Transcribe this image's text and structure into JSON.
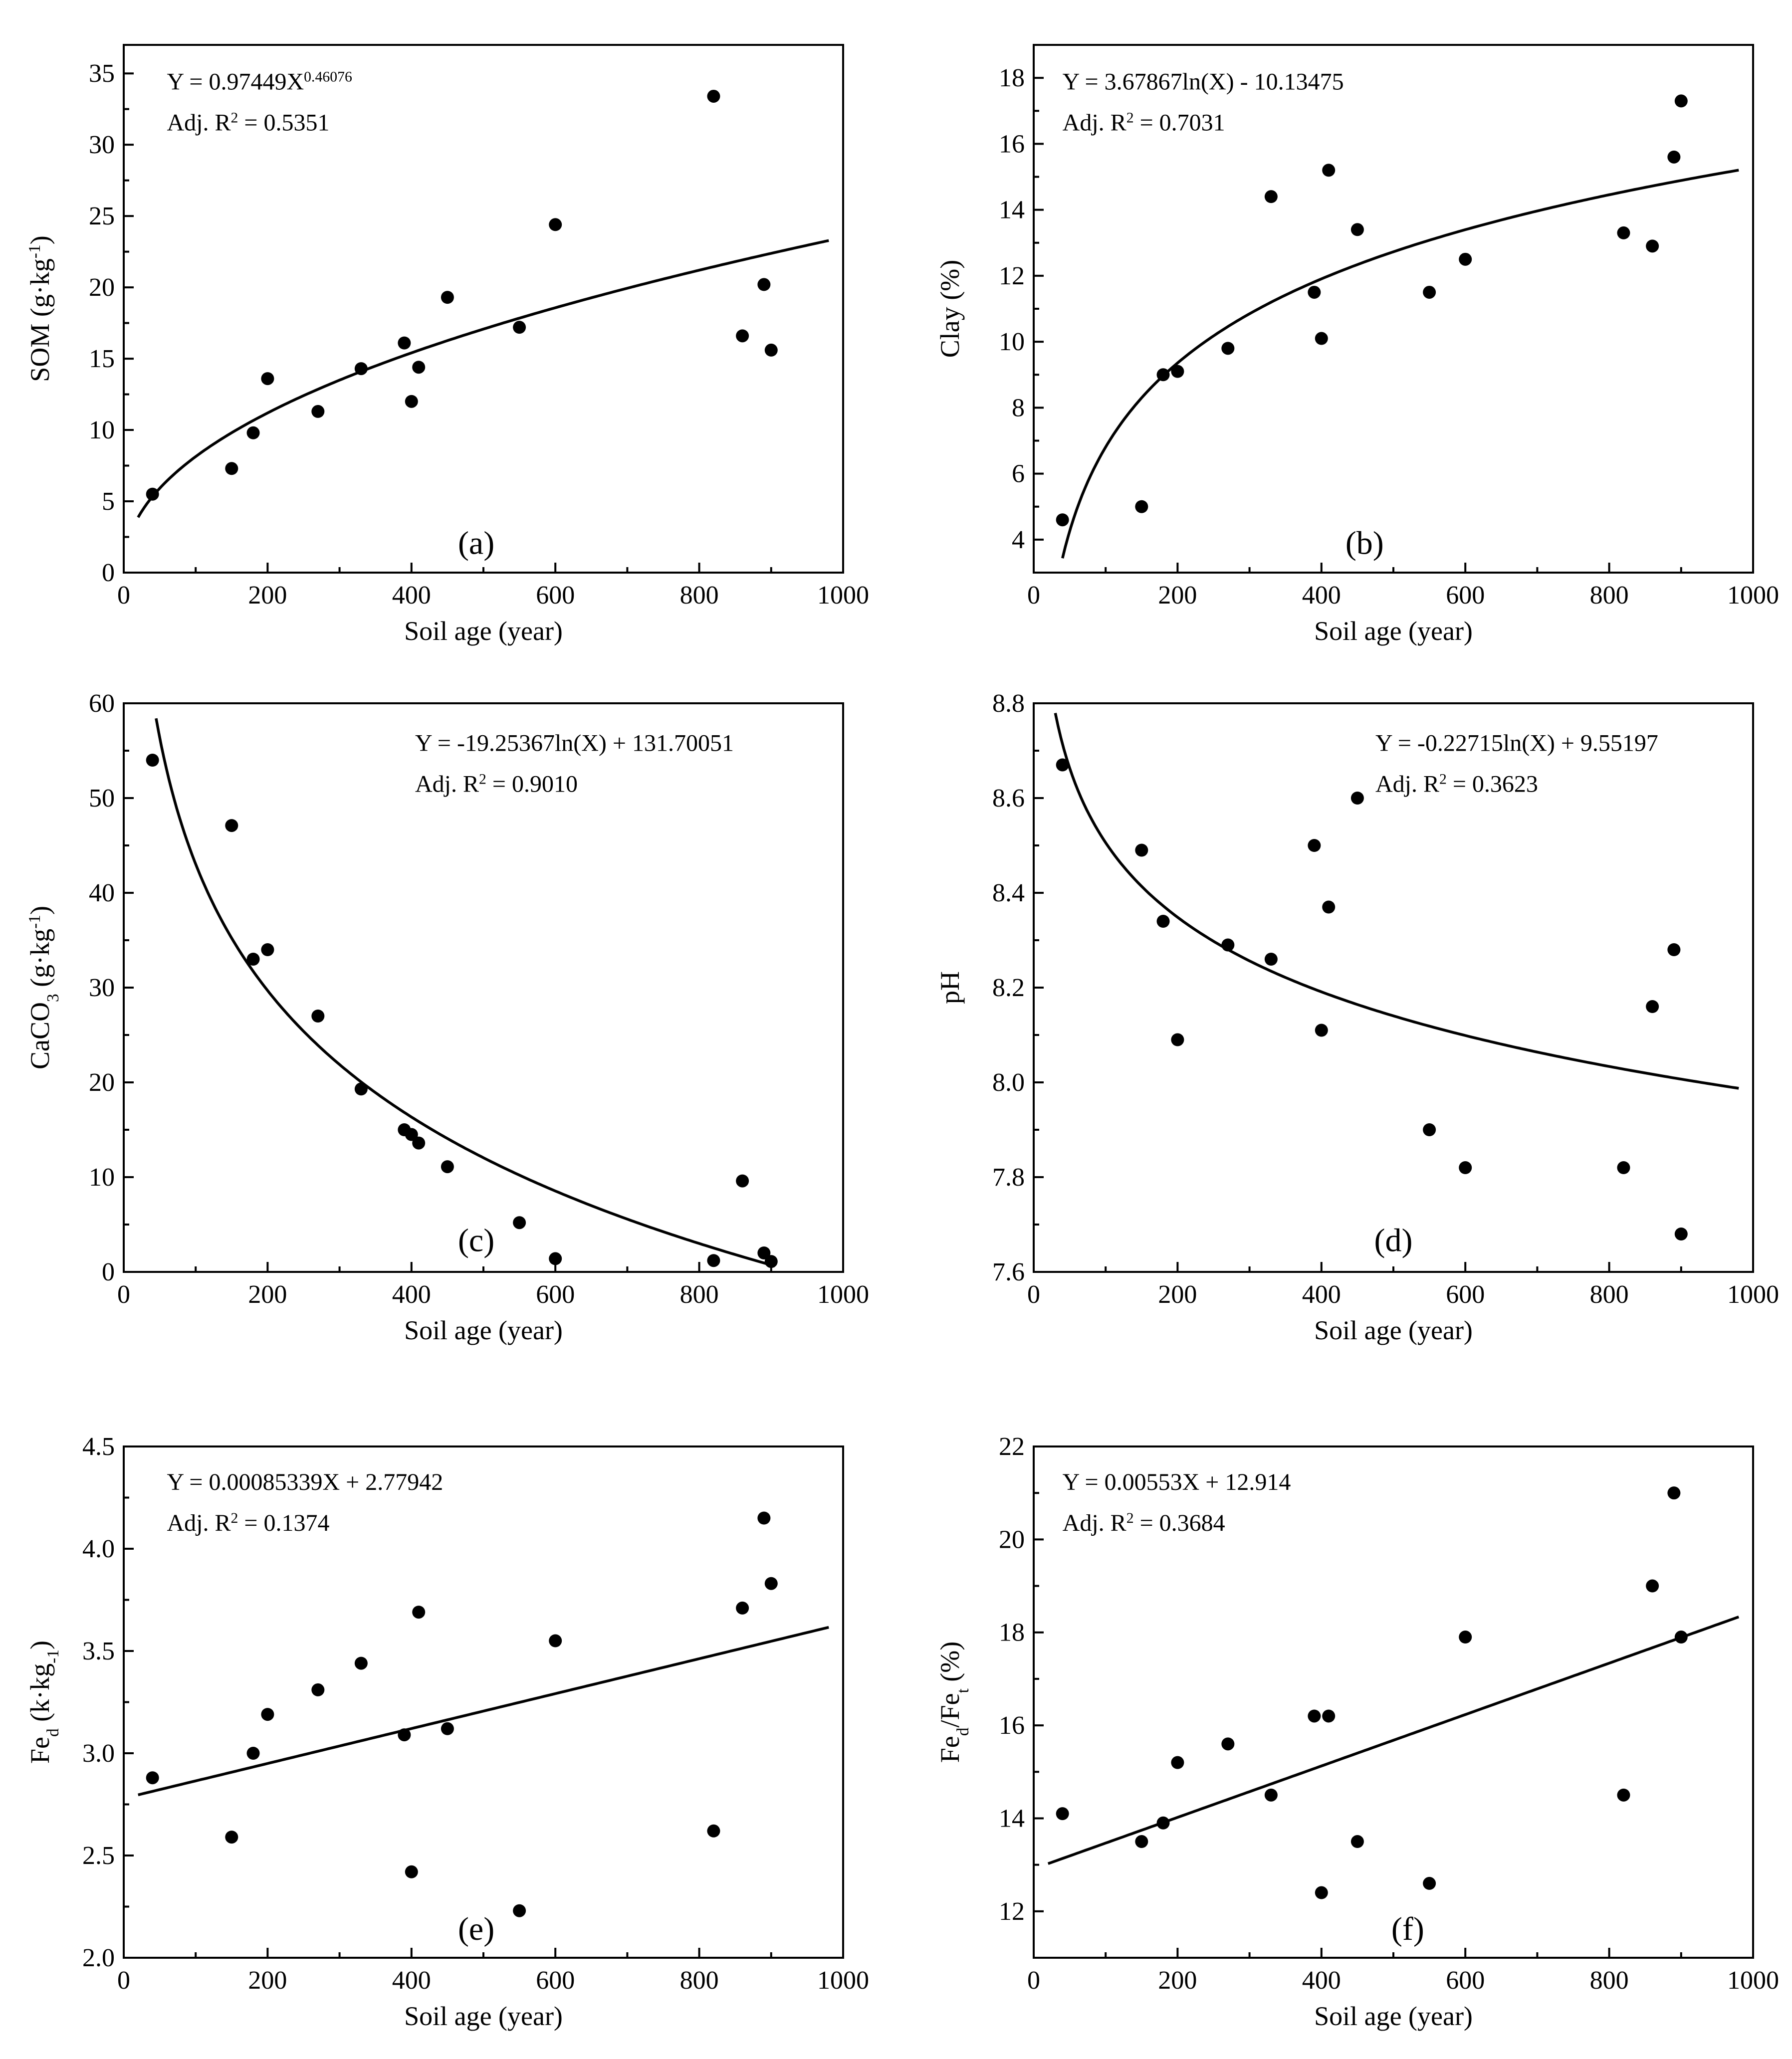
{
  "chart_data": [
    {
      "id": "a",
      "type": "scatter",
      "panel_label": "(a)",
      "xlabel": "Soil age (year)",
      "ylabel_parts": [
        {
          "t": "SOM (g·kg"
        },
        {
          "t": "-1",
          "sup": true
        },
        {
          "t": ")"
        }
      ],
      "equation_parts": [
        {
          "t": "Y = 0.97449X"
        },
        {
          "t": "0.46076",
          "sup": true
        }
      ],
      "r2_parts": [
        {
          "t": "Adj. R"
        },
        {
          "t": "2",
          "sup": true
        },
        {
          "t": " = 0.5351"
        }
      ],
      "xlim": [
        0,
        1000
      ],
      "ylim": [
        0,
        37
      ],
      "xticks": [
        0,
        200,
        400,
        600,
        800,
        1000
      ],
      "yticks": [
        0,
        5,
        10,
        15,
        20,
        25,
        30,
        35
      ],
      "points": [
        [
          40,
          5.5
        ],
        [
          150,
          7.3
        ],
        [
          180,
          9.8
        ],
        [
          200,
          13.6
        ],
        [
          270,
          11.3
        ],
        [
          330,
          14.3
        ],
        [
          390,
          16.1
        ],
        [
          400,
          12.0
        ],
        [
          410,
          14.4
        ],
        [
          450,
          19.3
        ],
        [
          550,
          17.2
        ],
        [
          600,
          24.4
        ],
        [
          820,
          33.4
        ],
        [
          860,
          16.6
        ],
        [
          890,
          20.2
        ],
        [
          900,
          15.6
        ]
      ],
      "fit": {
        "kind": "power",
        "a": 0.97449,
        "b": 0.46076,
        "x_range": [
          20,
          980
        ]
      }
    },
    {
      "id": "b",
      "type": "scatter",
      "panel_label": "(b)",
      "xlabel": "Soil age (year)",
      "ylabel_parts": [
        {
          "t": "Clay (%)"
        }
      ],
      "equation_parts": [
        {
          "t": "Y = 3.67867ln(X) - 10.13475"
        }
      ],
      "r2_parts": [
        {
          "t": "Adj. R"
        },
        {
          "t": "2",
          "sup": true
        },
        {
          "t": " = 0.7031"
        }
      ],
      "xlim": [
        0,
        1000
      ],
      "ylim": [
        3,
        19
      ],
      "xticks": [
        0,
        200,
        400,
        600,
        800,
        1000
      ],
      "yticks": [
        4,
        6,
        8,
        10,
        12,
        14,
        16,
        18
      ],
      "points": [
        [
          40,
          4.6
        ],
        [
          150,
          5.0
        ],
        [
          180,
          9.0
        ],
        [
          200,
          9.1
        ],
        [
          270,
          9.8
        ],
        [
          330,
          14.4
        ],
        [
          390,
          11.5
        ],
        [
          400,
          10.1
        ],
        [
          410,
          15.2
        ],
        [
          450,
          13.4
        ],
        [
          550,
          11.5
        ],
        [
          600,
          12.5
        ],
        [
          820,
          13.3
        ],
        [
          860,
          12.9
        ],
        [
          890,
          15.6
        ],
        [
          900,
          17.3
        ]
      ],
      "fit": {
        "kind": "log",
        "a": 3.67867,
        "b": -10.13475,
        "x_range": [
          40,
          980
        ]
      }
    },
    {
      "id": "c",
      "type": "scatter",
      "panel_label": "(c)",
      "xlabel": "Soil age (year)",
      "ylabel_parts": [
        {
          "t": "CaCO"
        },
        {
          "t": "3",
          "sub": true
        },
        {
          "t": "  (g·kg"
        },
        {
          "t": "-1",
          "sup": true
        },
        {
          "t": ")"
        }
      ],
      "equation_parts": [
        {
          "t": "Y = -19.25367ln(X) + 131.70051"
        }
      ],
      "r2_parts": [
        {
          "t": "Adj. R"
        },
        {
          "t": "2",
          "sup": true
        },
        {
          "t": " = 0.9010"
        }
      ],
      "xlim": [
        0,
        1000
      ],
      "ylim": [
        0,
        60
      ],
      "xticks": [
        0,
        200,
        400,
        600,
        800,
        1000
      ],
      "yticks": [
        0,
        10,
        20,
        30,
        40,
        50,
        60
      ],
      "points": [
        [
          40,
          54.0
        ],
        [
          150,
          47.1
        ],
        [
          180,
          33.0
        ],
        [
          200,
          34.0
        ],
        [
          270,
          27.0
        ],
        [
          330,
          19.3
        ],
        [
          390,
          15.0
        ],
        [
          400,
          14.5
        ],
        [
          410,
          13.6
        ],
        [
          450,
          11.1
        ],
        [
          550,
          5.2
        ],
        [
          600,
          1.4
        ],
        [
          820,
          1.2
        ],
        [
          860,
          9.6
        ],
        [
          890,
          2.0
        ],
        [
          900,
          1.1
        ]
      ],
      "fit": {
        "kind": "log",
        "a": -19.25367,
        "b": 131.70051,
        "x_range": [
          45,
          905
        ]
      }
    },
    {
      "id": "d",
      "type": "scatter",
      "panel_label": "(d)",
      "xlabel": "Soil age (year)",
      "ylabel_parts": [
        {
          "t": "pH"
        }
      ],
      "equation_parts": [
        {
          "t": "Y = -0.22715ln(X) + 9.55197"
        }
      ],
      "r2_parts": [
        {
          "t": "Adj. R"
        },
        {
          "t": "2",
          "sup": true
        },
        {
          "t": " = 0.3623"
        }
      ],
      "xlim": [
        0,
        1000
      ],
      "ylim": [
        7.6,
        8.8
      ],
      "xticks": [
        0,
        200,
        400,
        600,
        800,
        1000
      ],
      "yticks": [
        7.6,
        7.8,
        8.0,
        8.2,
        8.4,
        8.6,
        8.8
      ],
      "ytick_decimals": 1,
      "points": [
        [
          40,
          8.67
        ],
        [
          150,
          8.49
        ],
        [
          180,
          8.34
        ],
        [
          200,
          8.09
        ],
        [
          270,
          8.29
        ],
        [
          330,
          8.26
        ],
        [
          390,
          8.5
        ],
        [
          400,
          8.11
        ],
        [
          410,
          8.37
        ],
        [
          450,
          8.6
        ],
        [
          550,
          7.9
        ],
        [
          600,
          7.82
        ],
        [
          820,
          7.82
        ],
        [
          860,
          8.16
        ],
        [
          890,
          8.28
        ],
        [
          900,
          7.68
        ]
      ],
      "fit": {
        "kind": "log",
        "a": -0.22715,
        "b": 9.55197,
        "x_range": [
          30,
          980
        ]
      }
    },
    {
      "id": "e",
      "type": "scatter",
      "panel_label": "(e)",
      "xlabel": "Soil age (year)",
      "ylabel_parts": [
        {
          "t": "Fe"
        },
        {
          "t": "d",
          "sub": true
        },
        {
          "t": " (k·kg"
        },
        {
          "t": "-1",
          "sub": true
        },
        {
          "t": ")"
        }
      ],
      "equation_parts": [
        {
          "t": "Y = 0.00085339X + 2.77942"
        }
      ],
      "r2_parts": [
        {
          "t": "Adj. R"
        },
        {
          "t": "2",
          "sup": true
        },
        {
          "t": " = 0.1374"
        }
      ],
      "xlim": [
        0,
        1000
      ],
      "ylim": [
        2.0,
        4.5
      ],
      "xticks": [
        0,
        200,
        400,
        600,
        800,
        1000
      ],
      "yticks": [
        2.0,
        2.5,
        3.0,
        3.5,
        4.0,
        4.5
      ],
      "ytick_decimals": 1,
      "points": [
        [
          40,
          2.88
        ],
        [
          150,
          2.59
        ],
        [
          180,
          3.0
        ],
        [
          200,
          3.19
        ],
        [
          270,
          3.31
        ],
        [
          330,
          3.44
        ],
        [
          390,
          3.09
        ],
        [
          400,
          2.42
        ],
        [
          410,
          3.69
        ],
        [
          450,
          3.12
        ],
        [
          550,
          2.23
        ],
        [
          600,
          3.55
        ],
        [
          820,
          2.62
        ],
        [
          860,
          3.71
        ],
        [
          890,
          4.15
        ],
        [
          900,
          3.83
        ]
      ],
      "fit": {
        "kind": "linear",
        "a": 0.00085339,
        "b": 2.77942,
        "x_range": [
          20,
          980
        ]
      }
    },
    {
      "id": "f",
      "type": "scatter",
      "panel_label": "(f)",
      "xlabel": "Soil age (year)",
      "ylabel_parts": [
        {
          "t": "Fe"
        },
        {
          "t": "d",
          "sub": true
        },
        {
          "t": "/Fe"
        },
        {
          "t": "t",
          "sub": true
        },
        {
          "t": " (%)"
        }
      ],
      "equation_parts": [
        {
          "t": "Y = 0.00553X + 12.914"
        }
      ],
      "r2_parts": [
        {
          "t": "Adj. R"
        },
        {
          "t": "2",
          "sup": true
        },
        {
          "t": " = 0.3684"
        }
      ],
      "xlim": [
        0,
        1000
      ],
      "ylim": [
        11,
        22
      ],
      "xticks": [
        0,
        200,
        400,
        600,
        800,
        1000
      ],
      "yticks": [
        12,
        14,
        16,
        18,
        20,
        22
      ],
      "points": [
        [
          40,
          14.1
        ],
        [
          150,
          13.5
        ],
        [
          180,
          13.9
        ],
        [
          200,
          15.2
        ],
        [
          270,
          15.6
        ],
        [
          330,
          14.5
        ],
        [
          390,
          16.2
        ],
        [
          400,
          12.4
        ],
        [
          410,
          16.2
        ],
        [
          450,
          13.5
        ],
        [
          550,
          12.6
        ],
        [
          600,
          17.9
        ],
        [
          820,
          14.5
        ],
        [
          860,
          19.0
        ],
        [
          890,
          21.0
        ],
        [
          900,
          17.9
        ]
      ],
      "fit": {
        "kind": "linear",
        "a": 0.00553,
        "b": 12.914,
        "x_range": [
          20,
          980
        ]
      }
    }
  ]
}
